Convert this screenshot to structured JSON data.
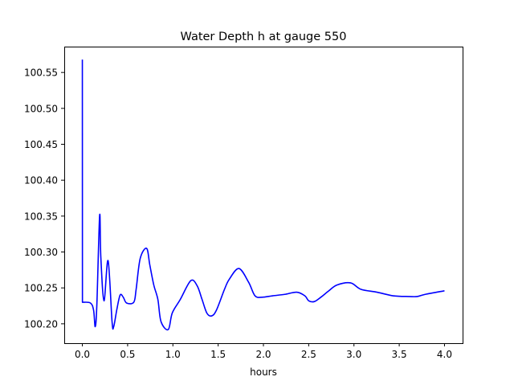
{
  "chart_data": {
    "type": "line",
    "title": "Water Depth h at gauge 550",
    "xlabel": "hours",
    "ylabel": "",
    "xlim": [
      -0.2,
      4.2
    ],
    "ylim": [
      100.173,
      100.586
    ],
    "xticks": [
      0.0,
      0.5,
      1.0,
      1.5,
      2.0,
      2.5,
      3.0,
      3.5,
      4.0
    ],
    "xtick_labels": [
      "0.0",
      "0.5",
      "1.0",
      "1.5",
      "2.0",
      "2.5",
      "3.0",
      "3.5",
      "4.0"
    ],
    "yticks": [
      100.2,
      100.25,
      100.3,
      100.35,
      100.4,
      100.45,
      100.5,
      100.55
    ],
    "ytick_labels": [
      "100.20",
      "100.25",
      "100.30",
      "100.35",
      "100.40",
      "100.45",
      "100.50",
      "100.55"
    ],
    "grid": false,
    "series": [
      {
        "name": "h",
        "color": "#0000ff",
        "x": [
          0,
          0.001,
          0.089,
          0.124,
          0.142,
          0.16,
          0.191,
          0.204,
          0.239,
          0.284,
          0.328,
          0.346,
          0.381,
          0.417,
          0.452,
          0.488,
          0.568,
          0.594,
          0.639,
          0.71,
          0.745,
          0.789,
          0.834,
          0.869,
          0.949,
          0.993,
          1.082,
          1.197,
          1.268,
          1.322,
          1.375,
          1.428,
          1.481,
          1.57,
          1.623,
          1.729,
          1.836,
          1.907,
          1.987,
          2.102,
          2.235,
          2.368,
          2.457,
          2.501,
          2.563,
          2.634,
          2.723,
          2.812,
          2.962,
          3.078,
          3.255,
          3.432,
          3.61,
          3.698,
          3.787,
          4.0
        ],
        "y": [
          100.568,
          100.23,
          100.229,
          100.219,
          100.196,
          100.226,
          100.351,
          100.293,
          100.232,
          100.288,
          100.203,
          100.196,
          100.22,
          100.24,
          100.237,
          100.229,
          100.23,
          100.248,
          100.291,
          100.305,
          100.282,
          100.254,
          100.234,
          100.203,
          100.192,
          100.215,
          100.234,
          100.26,
          100.253,
          100.234,
          100.215,
          100.211,
          100.219,
          100.248,
          100.262,
          100.277,
          100.258,
          100.239,
          100.237,
          100.239,
          100.241,
          100.244,
          100.239,
          100.232,
          100.231,
          100.237,
          100.246,
          100.254,
          100.257,
          100.248,
          100.244,
          100.239,
          100.238,
          100.238,
          100.241,
          100.246
        ]
      }
    ]
  }
}
